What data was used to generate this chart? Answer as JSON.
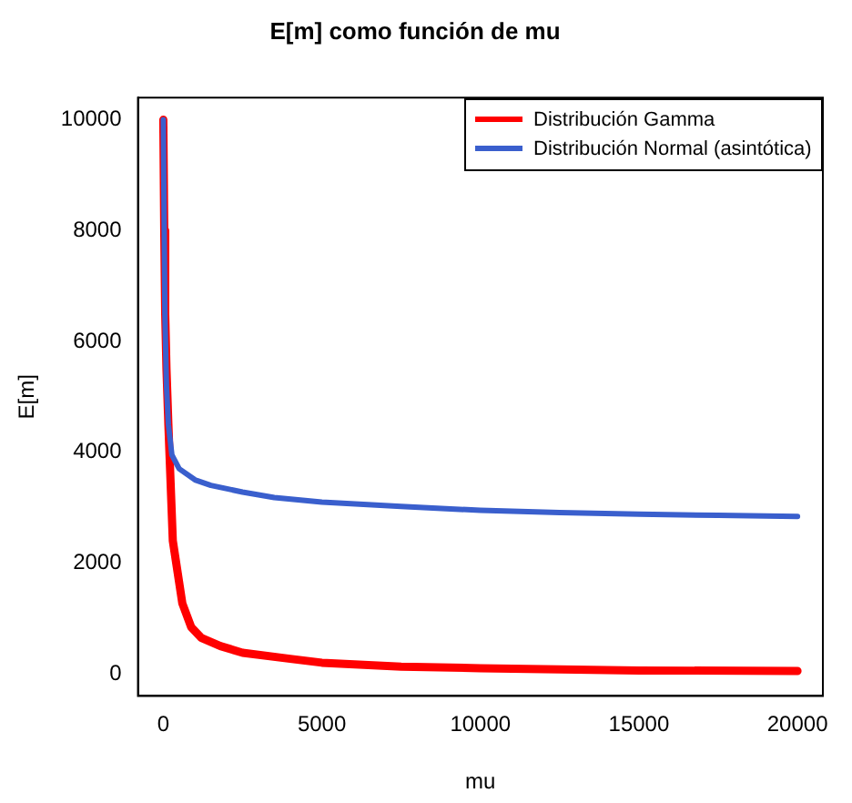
{
  "chart_data": {
    "type": "line",
    "title": "E[m] como función de mu",
    "xlabel": "mu",
    "ylabel": "E[m]",
    "xlim": [
      -800,
      20800
    ],
    "ylim": [
      -400,
      10400
    ],
    "xticks": [
      0,
      5000,
      10000,
      15000,
      20000
    ],
    "yticks": [
      0,
      2000,
      4000,
      6000,
      8000,
      10000
    ],
    "grid": false,
    "legend": "top right",
    "marker": "none",
    "line_style": "solid",
    "series": [
      {
        "name": "Distribución Gamma",
        "color": "#ff0000",
        "x": [
          0,
          30,
          60,
          100,
          160,
          300,
          600,
          880,
          1200,
          1800,
          2500,
          4000,
          5000,
          7500,
          10000,
          15000,
          20000
        ],
        "values": [
          10000,
          8000,
          6500,
          5500,
          4500,
          2400,
          1270,
          840,
          650,
          500,
          380,
          270,
          200,
          130,
          100,
          60,
          50
        ]
      },
      {
        "name": "Distribución Normal (asintótica)",
        "color": "#3a5fcd",
        "x": [
          0,
          50,
          100,
          160,
          270,
          500,
          1000,
          1500,
          2500,
          3500,
          5000,
          7500,
          10000,
          12500,
          15000,
          17500,
          20000
        ],
        "values": [
          10000,
          6500,
          5200,
          4500,
          3950,
          3700,
          3500,
          3400,
          3280,
          3180,
          3100,
          3020,
          2950,
          2910,
          2880,
          2860,
          2840
        ]
      }
    ]
  }
}
